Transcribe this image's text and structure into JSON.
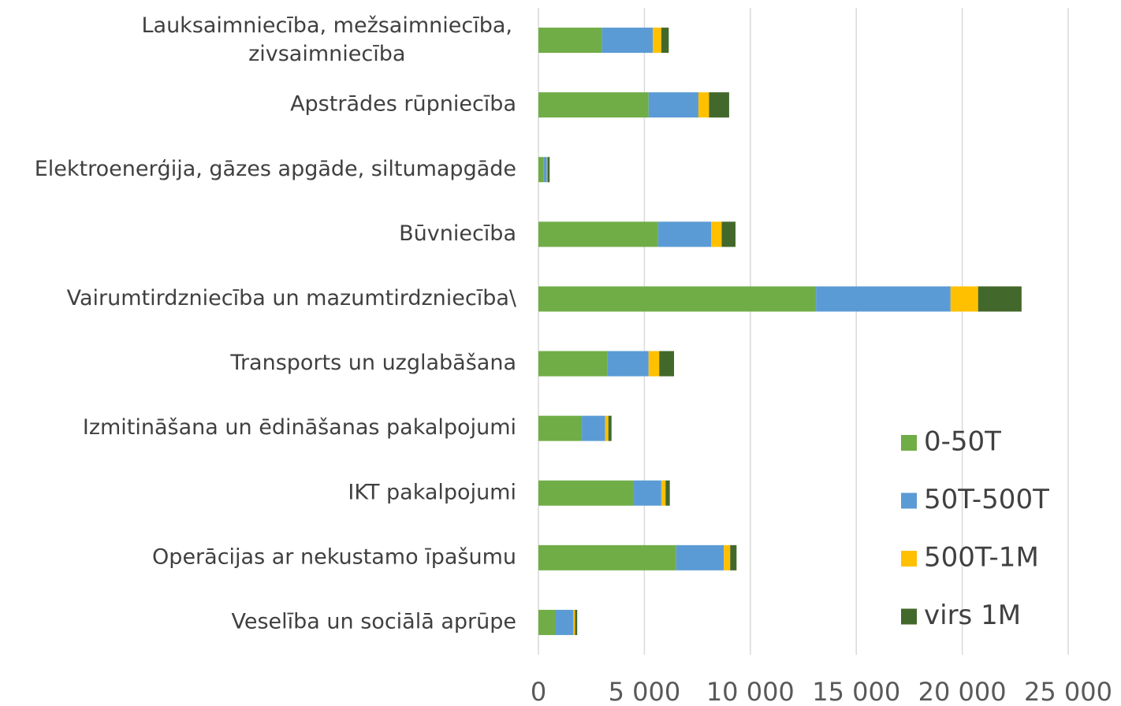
{
  "chart_data": {
    "type": "stacked-barh",
    "categories": [
      "Lauksaimniecība, mežsaimniecība,\nzivsaimniecība",
      "Apstrādes rūpniecība",
      "Elektroenerģija, gāzes apgāde, siltumapgāde",
      "Būvniecība",
      "Vairumtirdzniecība un mazumtirdzniecība\\",
      "Transports un uzglabāšana",
      "Izmitināšana un ēdināšanas pakalpojumi",
      "IKT pakalpojumi",
      "Operācijas ar nekustamo īpašumu",
      "Veselība un sociālā aprūpe"
    ],
    "series": [
      {
        "name": "0-50T",
        "color": "#70ad47",
        "values": [
          3000,
          5200,
          250,
          5650,
          13100,
          3250,
          2050,
          4500,
          6500,
          800
        ]
      },
      {
        "name": "50T-500T",
        "color": "#5b9bd5",
        "values": [
          2400,
          2350,
          150,
          2500,
          6350,
          1950,
          1100,
          1300,
          2250,
          850
        ]
      },
      {
        "name": "500T-1M",
        "color": "#ffc000",
        "values": [
          400,
          500,
          30,
          500,
          1300,
          500,
          150,
          200,
          300,
          80
        ]
      },
      {
        "name": "virs 1M",
        "color": "#43682b",
        "values": [
          350,
          950,
          100,
          650,
          2050,
          700,
          150,
          200,
          300,
          100
        ]
      }
    ],
    "xlim": [
      0,
      25000
    ],
    "xticks": [
      0,
      {
        "value": 5000,
        "label": "5 000"
      },
      {
        "value": 10000,
        "label": "10 000"
      },
      {
        "value": 15000,
        "label": "15 000"
      },
      {
        "value": 20000,
        "label": "20 000"
      },
      {
        "value": 25000,
        "label": "25 000"
      }
    ],
    "grid": true,
    "legend": "right"
  }
}
